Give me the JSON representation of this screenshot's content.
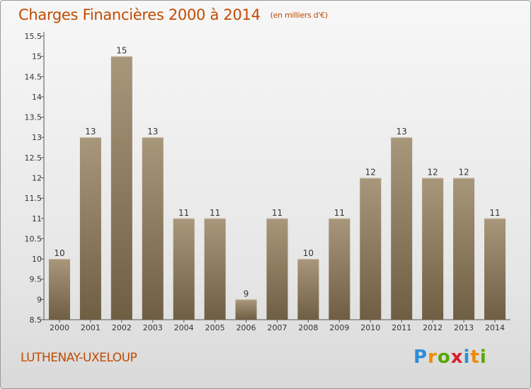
{
  "title": "Charges Financières 2000 à 2014",
  "subtitle": "(en milliers d'€)",
  "commune": "LUTHENAY-UXELOUP",
  "logo": {
    "letters": [
      "P",
      "r",
      "o",
      "x",
      "i",
      "t",
      "i"
    ],
    "colors": [
      "#2a8fd8",
      "#f08a00",
      "#57a800",
      "#d81f2a",
      "#2a8fd8",
      "#f08a00",
      "#57a800"
    ]
  },
  "colors": {
    "bar_top": "#a8977a",
    "bar_bottom": "#6f5e43",
    "text_accent": "#c04b00"
  },
  "chart_data": {
    "type": "bar",
    "title": "Charges Financières 2000 à 2014",
    "subtitle": "(en milliers d'€)",
    "categories": [
      "2000",
      "2001",
      "2002",
      "2003",
      "2004",
      "2005",
      "2006",
      "2007",
      "2008",
      "2009",
      "2010",
      "2011",
      "2012",
      "2013",
      "2014"
    ],
    "values": [
      10,
      13,
      15,
      13,
      11,
      11,
      9,
      11,
      10,
      11,
      12,
      13,
      12,
      12,
      11
    ],
    "ylim": [
      8.5,
      15.5
    ],
    "yticks": [
      "8.5",
      "9",
      "9.5",
      "10",
      "10.5",
      "11",
      "11.5",
      "12",
      "12.5",
      "13",
      "13.5",
      "14",
      "14.5",
      "15",
      "15.5"
    ],
    "grid": false,
    "legend": "none"
  }
}
